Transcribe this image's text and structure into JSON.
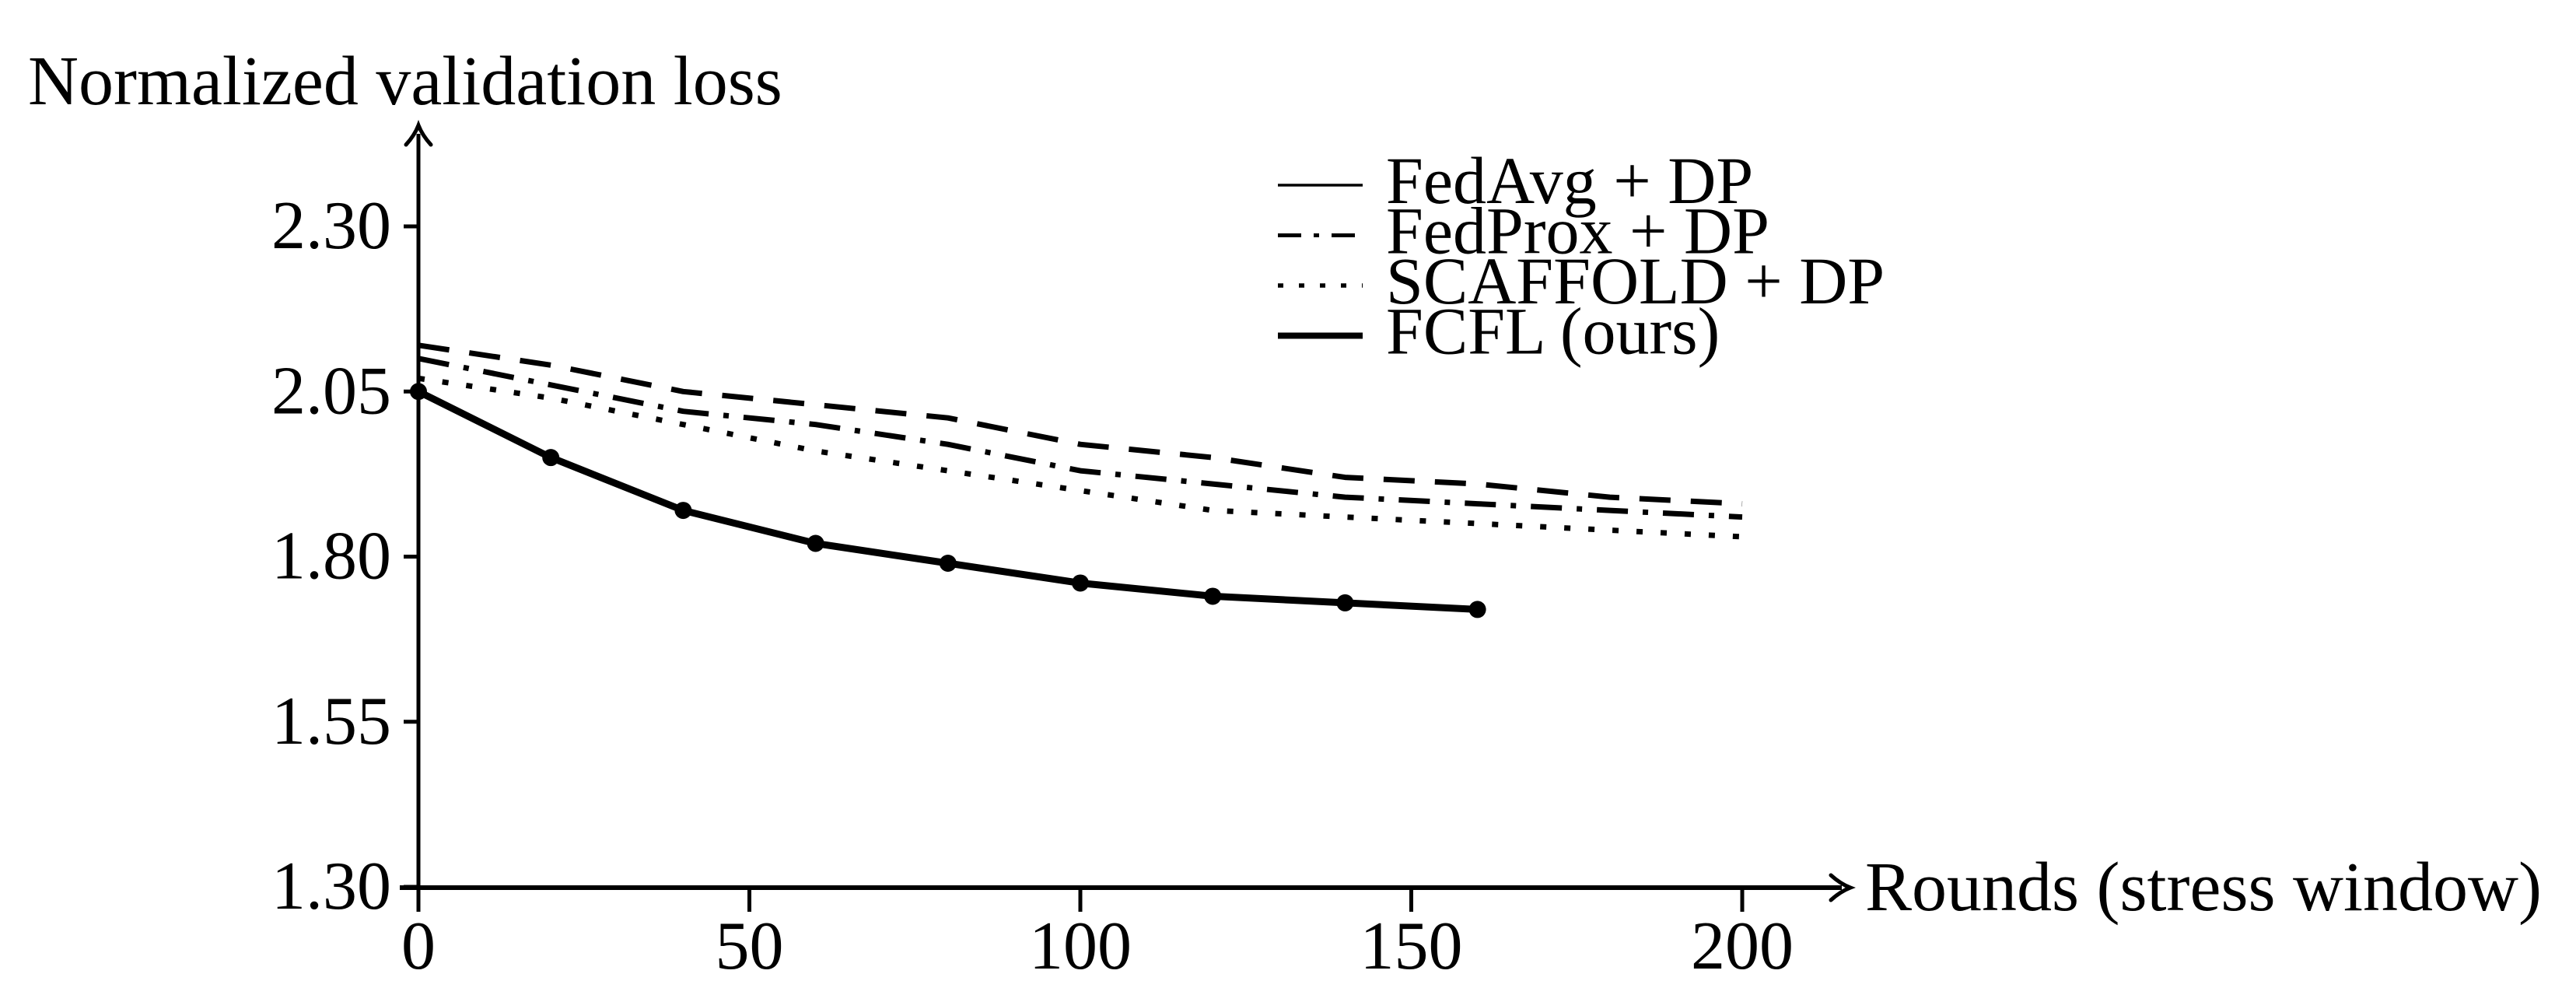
{
  "page": {
    "background_color": "#ffffff",
    "foreground_color": "#000000"
  },
  "chart_data": {
    "type": "line",
    "title": "Normalized validation loss",
    "xlabel": "Rounds (stress window)",
    "ylabel": "Normalized validation loss",
    "x_tick_labels": [
      "0",
      "50",
      "100",
      "150",
      "200"
    ],
    "x_tick_values": [
      0,
      50,
      100,
      150,
      200
    ],
    "y_tick_labels": [
      "2.30",
      "2.05",
      "1.80",
      "1.55",
      "1.30"
    ],
    "y_tick_values": [
      2.3,
      2.05,
      1.8,
      1.55,
      1.3
    ],
    "xlim": [
      0,
      205
    ],
    "ylim": [
      1.3,
      2.42
    ],
    "grid": false,
    "legend_position": "top-right",
    "series": [
      {
        "name": "FedAvg + DP",
        "color": "#000000",
        "plot_line": "dashed",
        "legend_line": "solid-thin",
        "markers": false,
        "x": [
          0,
          20,
          40,
          60,
          80,
          100,
          120,
          140,
          160,
          180,
          200
        ],
        "values": [
          2.12,
          2.09,
          2.05,
          2.03,
          2.01,
          1.97,
          1.95,
          1.92,
          1.91,
          1.89,
          1.88
        ]
      },
      {
        "name": "FedProx + DP",
        "color": "#000000",
        "plot_line": "dash-dot",
        "legend_line": "dash-dot",
        "markers": false,
        "x": [
          0,
          20,
          40,
          60,
          80,
          100,
          120,
          140,
          160,
          180,
          200
        ],
        "values": [
          2.1,
          2.06,
          2.02,
          2.0,
          1.97,
          1.93,
          1.91,
          1.89,
          1.88,
          1.87,
          1.86
        ]
      },
      {
        "name": "SCAFFOLD + DP",
        "color": "#000000",
        "plot_line": "dotted",
        "legend_line": "dotted",
        "markers": false,
        "x": [
          0,
          20,
          40,
          60,
          80,
          100,
          120,
          140,
          160,
          180,
          200
        ],
        "values": [
          2.07,
          2.04,
          2.0,
          1.96,
          1.93,
          1.9,
          1.87,
          1.86,
          1.85,
          1.84,
          1.83
        ]
      },
      {
        "name": "FCFL (ours)",
        "color": "#000000",
        "plot_line": "solid-thick",
        "legend_line": "solid-thick",
        "markers": true,
        "x": [
          0,
          20,
          40,
          60,
          80,
          100,
          120,
          140,
          160
        ],
        "values": [
          2.05,
          1.95,
          1.87,
          1.82,
          1.79,
          1.76,
          1.74,
          1.73,
          1.72
        ]
      }
    ]
  }
}
